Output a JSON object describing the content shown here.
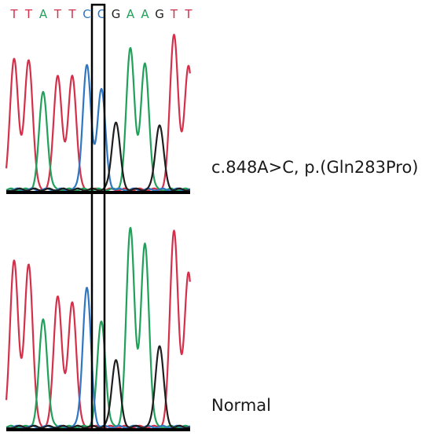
{
  "sequence": {
    "bases": [
      "T",
      "T",
      "A",
      "T",
      "T",
      "C",
      "C",
      "G",
      "A",
      "A",
      "G",
      "T",
      "T"
    ],
    "highlighted_index": 6
  },
  "base_colors": {
    "T": "#d4304a",
    "A": "#21a05a",
    "C": "#2e77c2",
    "G": "#1e1e1e"
  },
  "traces": [
    {
      "name": "mutant",
      "label": "c.848A>C, p.(Gln283Pro)",
      "peaks": [
        {
          "base": "T",
          "level": 0.93
        },
        {
          "base": "T",
          "level": 0.92
        },
        {
          "base": "A",
          "level": 0.69
        },
        {
          "base": "T",
          "level": 0.81
        },
        {
          "base": "T",
          "level": 0.81
        },
        {
          "base": "C",
          "level": 0.88
        },
        {
          "base": "C",
          "level": 0.71
        },
        {
          "base": "G",
          "level": 0.48
        },
        {
          "base": "A",
          "level": 1.0
        },
        {
          "base": "A",
          "level": 0.89
        },
        {
          "base": "G",
          "level": 0.46
        },
        {
          "base": "T",
          "level": 1.1
        },
        {
          "base": "T",
          "level": 0.88
        }
      ]
    },
    {
      "name": "normal",
      "label": "Normal",
      "peaks": [
        {
          "base": "T",
          "level": 0.84
        },
        {
          "base": "T",
          "level": 0.82
        },
        {
          "base": "A",
          "level": 0.54
        },
        {
          "base": "T",
          "level": 0.66
        },
        {
          "base": "T",
          "level": 0.63
        },
        {
          "base": "C",
          "level": 0.7
        },
        {
          "base": "A",
          "level": 0.53
        },
        {
          "base": "G",
          "level": 0.34
        },
        {
          "base": "A",
          "level": 1.0
        },
        {
          "base": "A",
          "level": 0.92
        },
        {
          "base": "G",
          "level": 0.41
        },
        {
          "base": "T",
          "level": 0.99
        },
        {
          "base": "T",
          "level": 0.78
        }
      ]
    }
  ]
}
